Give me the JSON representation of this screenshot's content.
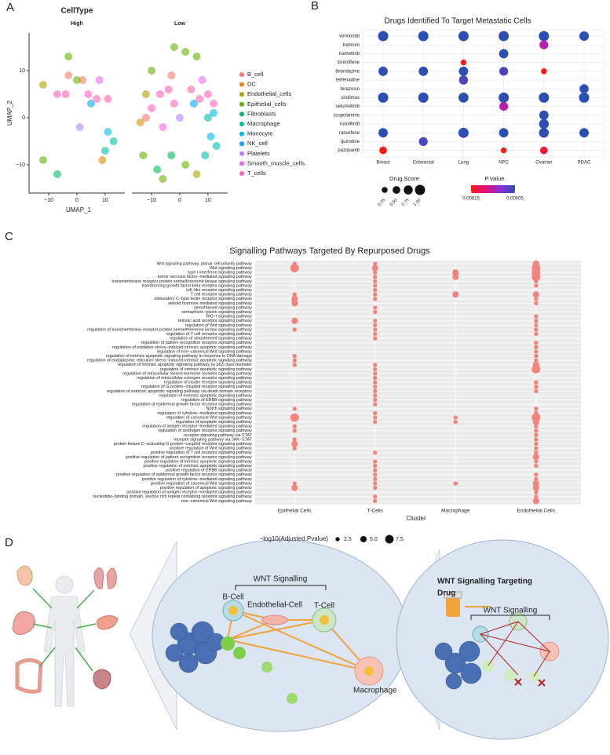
{
  "panel_labels": [
    "A",
    "B",
    "C",
    "D"
  ],
  "chart_data": [
    {
      "type": "scatter",
      "title": "CellType",
      "xlabel": "UMAP_1",
      "ylabel": "UMAP_2",
      "xlim": [
        -17,
        17
      ],
      "ylim": [
        -16,
        18
      ],
      "xticks": [
        {
          "value": -10,
          "label": "−10"
        },
        0,
        10
      ],
      "yticks": [
        {
          "value": -10,
          "label": "−10"
        },
        0,
        10
      ],
      "series": [
        {
          "name": "B_cell",
          "color": "#F8766D"
        },
        {
          "name": "DC",
          "color": "#DB8E00"
        },
        {
          "name": "Endothelial_cells",
          "color": "#AEA200"
        },
        {
          "name": "Epithelial_cells",
          "color": "#64B200"
        },
        {
          "name": "Fibroblasts",
          "color": "#00BD5C"
        },
        {
          "name": "Macrophage",
          "color": "#00C1A7"
        },
        {
          "name": "Monocyte",
          "color": "#00BADE"
        },
        {
          "name": "NK_cell",
          "color": "#00A6FF"
        },
        {
          "name": "Platelets",
          "color": "#B385FF"
        },
        {
          "name": "Smooth_muscle_cells",
          "color": "#EF67EB"
        },
        {
          "name": "T_cells",
          "color": "#FF63B6"
        }
      ],
      "facets": [
        {
          "label": "High",
          "points": [
            {
              "x": [
                -3,
                2
              ],
              "y": [
                9,
                8
              ]
            },
            {
              "x": [
                9
              ],
              "y": [
                -9
              ]
            },
            {
              "x": [
                -12
              ],
              "y": [
                7
              ]
            },
            {
              "x": [
                -3,
                -12,
                0
              ],
              "y": [
                13,
                -9,
                8
              ]
            },
            {
              "x": [
                -7
              ],
              "y": [
                -12
              ]
            },
            {
              "x": [
                10,
                13
              ],
              "y": [
                -7,
                -5
              ]
            },
            {
              "x": [
                11
              ],
              "y": [
                -3
              ]
            },
            {
              "x": [
                5
              ],
              "y": [
                3
              ]
            },
            {
              "x": [
                1
              ],
              "y": [
                -2
              ]
            },
            {
              "x": [
                8
              ],
              "y": [
                8
              ]
            },
            {
              "x": [
                -7,
                -4,
                4,
                7,
                11
              ],
              "y": [
                5,
                5,
                5,
                4,
                4
              ]
            }
          ]
        },
        {
          "label": "Low",
          "points": [
            {
              "x": [
                -3,
                -12
              ],
              "y": [
                9,
                0
              ]
            },
            {
              "x": [
                -14
              ],
              "y": [
                -1
              ]
            },
            {
              "x": [
                -12,
                6
              ],
              "y": [
                5,
                -12
              ]
            },
            {
              "x": [
                -2,
                2,
                6,
                -13,
                -6,
                2,
                -10
              ],
              "y": [
                15,
                14,
                13,
                -8,
                -13,
                -10,
                10
              ]
            },
            {
              "x": [
                -8,
                -3
              ],
              "y": [
                -11,
                -8
              ]
            },
            {
              "x": [
                10,
                13,
                9
              ],
              "y": [
                0,
                -6,
                -8
              ]
            },
            {
              "x": [
                11,
                12
              ],
              "y": [
                -4,
                1
              ]
            },
            {
              "x": [
                5
              ],
              "y": [
                3
              ]
            },
            {
              "x": [
                0
              ],
              "y": [
                0
              ]
            },
            {
              "x": [
                8,
                -6
              ],
              "y": [
                8,
                -2
              ]
            },
            {
              "x": [
                -7,
                -4,
                -2,
                4,
                7,
                10,
                12,
                -10
              ],
              "y": [
                5,
                6,
                3,
                6,
                4,
                5,
                3,
                2
              ]
            }
          ]
        }
      ]
    },
    {
      "type": "dotplot",
      "title": "Drugs Identified To Target Metastatic Cells",
      "categories": [
        "vorinostat",
        "tretinoin",
        "trametinib",
        "toremifene",
        "thioridazine",
        "terfenadine",
        "terazosin",
        "sirolimus",
        "selumetinib",
        "scopolamine",
        "ruxolitinib",
        "raloxifene",
        "quinidine",
        "pazopanib"
      ],
      "size_title": "Drug.Score",
      "size_ticks": [
        0.25,
        {
          "value": 0.5,
          "label": "0.50"
        },
        0.75,
        {
          "value": 1,
          "label": "1.00"
        }
      ],
      "color_title": "P.Value",
      "colorlim": [
        0.00015,
        5e-05
      ],
      "colorticks": [
        0.00015,
        5e-05
      ],
      "colors": [
        "#ff1a1a",
        "#e0107a",
        "#8a2fd8",
        "#2c4fb3"
      ],
      "series": [
        {
          "name": "Breast",
          "values": [
            1,
            null,
            null,
            null,
            0.8,
            null,
            null,
            1,
            null,
            null,
            null,
            0.8,
            null,
            0.5
          ],
          "pvalues": [
            5e-05,
            null,
            null,
            null,
            5e-05,
            null,
            null,
            5e-05,
            null,
            null,
            null,
            5e-05,
            null,
            0.00015
          ]
        },
        {
          "name": "Colorectal",
          "values": [
            1,
            null,
            null,
            null,
            0.8,
            null,
            null,
            1,
            null,
            null,
            null,
            null,
            0.7,
            null
          ],
          "pvalues": [
            5e-05,
            null,
            null,
            null,
            5e-05,
            null,
            null,
            5e-05,
            null,
            null,
            null,
            null,
            6e-05,
            null
          ]
        },
        {
          "name": "Lung",
          "values": [
            1,
            null,
            null,
            0.25,
            0.8,
            0.75,
            null,
            0.95,
            null,
            null,
            null,
            1,
            null,
            null
          ],
          "pvalues": [
            5e-05,
            null,
            null,
            0.00015,
            5e-05,
            6e-05,
            null,
            5e-05,
            null,
            null,
            null,
            5e-05,
            null,
            null
          ]
        },
        {
          "name": "NPC",
          "values": [
            1,
            null,
            0.8,
            null,
            0.7,
            null,
            null,
            1,
            0.7,
            null,
            null,
            0.8,
            null,
            0.25
          ],
          "pvalues": [
            5e-05,
            null,
            5e-05,
            null,
            6e-05,
            null,
            null,
            5e-05,
            0.0001,
            null,
            null,
            5e-05,
            null,
            0.00015
          ]
        },
        {
          "name": "Ovarian",
          "values": [
            1,
            0.7,
            null,
            null,
            0.25,
            null,
            null,
            1,
            null,
            0.8,
            0.9,
            0.9,
            null,
            0.5
          ],
          "pvalues": [
            5e-05,
            0.0001,
            null,
            null,
            0.00015,
            null,
            null,
            5e-05,
            null,
            5e-05,
            5e-05,
            5e-05,
            null,
            0.00014
          ]
        },
        {
          "name": "PDAC",
          "values": [
            0.85,
            null,
            null,
            null,
            null,
            null,
            0.75,
            1,
            null,
            null,
            null,
            0.8,
            null,
            null
          ],
          "pvalues": [
            5e-05,
            null,
            null,
            null,
            null,
            null,
            5e-05,
            5e-05,
            null,
            null,
            null,
            5e-05,
            null,
            null
          ]
        }
      ]
    },
    {
      "type": "dotplot",
      "title": "Signalling Pathways Targeted By Repurposed Drugs",
      "xlabel": "Cluster",
      "color": "#f4837d",
      "size_title": "−log10(Adjusted.Pvalue)",
      "size_ticks": [
        2.5,
        {
          "value": 5,
          "label": "5.0"
        },
        7.5
      ],
      "categories": [
        "Wnt signaling pathway, planar cell polarity pathway",
        "Wnt signaling pathway",
        "type I interferon signaling pathway",
        "tumor necrosis factor−mediated signaling pathway",
        "transmembrane receptor protein serine/threonine kinase signaling pathway",
        "transforming growth factor beta receptor signaling pathway",
        "toll−like receptor signaling pathway",
        "T cell receptor signaling pathway",
        "stimulatory C−type lectin receptor signaling pathway",
        "steroid hormone mediated signaling pathway",
        "smoothened signaling pathway",
        "semaphorin−plexin signaling pathway",
        "RIG−I signaling pathway",
        "retinoic acid receptor signaling pathway",
        "regulation of Wnt signaling pathway",
        "regulation of transmembrane receptor protein serine/threonine kinase signaling pathway",
        "regulation of T cell receptor signaling pathway",
        "regulation of smoothened signaling pathway",
        "regulation of pattern recognition receptor signaling pathway",
        "regulation of oxidative stress−induced intrinsic apoptotic signaling pathway",
        "regulation of non−canonical Wnt signaling pathway",
        "regulation of intrinsic apoptotic signaling pathway in response to DNA damage",
        "regulation of endoplasmic reticulum stress−induced intrinsic apoptotic signaling pathway",
        "regulation of intrinsic apoptotic signaling pathway by p53 class mediator",
        "regulation of intrinsic apoptotic signaling pathway",
        "regulation of intracellular steroid hormone receptor signaling pathway",
        "regulation of intracellular estrogen receptor signaling pathway",
        "regulation of insulin receptor signaling pathway",
        "regulation of G protein−coupled receptor signaling pathway",
        "regulation of extrinsic apoptotic signaling pathway via death domain receptors",
        "regulation of extrinsic apoptotic signaling pathway",
        "regulation of ERBB signaling pathway",
        "regulation of epidermal growth factor receptor signaling pathway",
        "Notch signaling pathway",
        "regulation of cytokine−mediated signaling pathway",
        "regulation of canonical Wnt signaling pathway",
        "regulation of apoptotic signaling pathway",
        "regulation of antigen receptor−mediated signaling pathway",
        "regulation of androgen receptor signaling pathway",
        "receptor signaling pathway via STAT",
        "receptor signaling pathway via JAK−STAT",
        "protein kinase C−activating G protein−coupled receptor signaling pathway",
        "positive regulation of Wnt signaling pathway",
        "positive regulation of T cell receptor signaling pathway",
        "positive regulation of pattern recognition receptor signaling pathway",
        "positive regulation of intrinsic apoptotic signaling pathway",
        "positive regulation of extrinsic apoptotic signaling pathway",
        "positive regulation of ERBB signaling pathway",
        "positive regulation of epidermal growth factor receptor signaling pathway",
        "positive regulation of cytokine−mediated signaling pathway",
        "positive regulation of canonical Wnt signaling pathway",
        "positive regulation of apoptotic signaling pathway",
        "positive regulation of antigen receptor−mediated signaling pathway",
        "nucleotide−binding domain, leucine rich repeat containing receptor signaling pathway",
        "non−canonical Wnt signaling pathway"
      ],
      "series": [
        {
          "name": "Epithelial Cells",
          "values": [
            2.5,
            7.5,
            null,
            null,
            null,
            null,
            null,
            2.5,
            5,
            5,
            null,
            null,
            null,
            5,
            null,
            2.5,
            null,
            null,
            null,
            null,
            null,
            2.5,
            2.5,
            2.5,
            null,
            null,
            null,
            null,
            null,
            null,
            null,
            null,
            null,
            2.5,
            null,
            7.5,
            null,
            2.5,
            2.5,
            null,
            2.5,
            5,
            2.5,
            null,
            null,
            null,
            null,
            null,
            null,
            null,
            2.5,
            5,
            null,
            null,
            null
          ]
        },
        {
          "name": "T-Cells",
          "values": [
            2.5,
            5,
            2.5,
            2.5,
            2.5,
            2.5,
            2.5,
            2.5,
            2.5,
            null,
            2.5,
            2.5,
            null,
            2.5,
            2.5,
            2.5,
            2.5,
            2.5,
            null,
            null,
            null,
            null,
            null,
            2.5,
            2.5,
            2.5,
            2.5,
            2.5,
            2.5,
            2.5,
            2.5,
            2.5,
            2.5,
            null,
            2.5,
            2.5,
            2.5,
            null,
            null,
            null,
            null,
            null,
            null,
            2.5,
            null,
            2.5,
            2.5,
            2.5,
            2.5,
            2.5,
            2.5,
            2.5,
            null,
            2.5,
            2.5
          ]
        },
        {
          "name": "Macrophage",
          "values": [
            null,
            null,
            5,
            5,
            null,
            null,
            null,
            5,
            null,
            null,
            null,
            null,
            null,
            null,
            null,
            null,
            null,
            null,
            null,
            null,
            null,
            null,
            null,
            null,
            null,
            null,
            null,
            null,
            null,
            null,
            null,
            null,
            null,
            null,
            null,
            2.5,
            2.5,
            null,
            null,
            null,
            null,
            null,
            null,
            null,
            null,
            null,
            null,
            null,
            null,
            null,
            2.5,
            null,
            null,
            null,
            null
          ]
        },
        {
          "name": "Endothelial Cells",
          "values": [
            5,
            7.5,
            7.5,
            7.5,
            2.5,
            2.5,
            null,
            5,
            2.5,
            2.5,
            null,
            null,
            2.5,
            2.5,
            2.5,
            2.5,
            2.5,
            null,
            2.5,
            2.5,
            2.5,
            2.5,
            2.5,
            5,
            7.5,
            null,
            null,
            2.5,
            2.5,
            2.5,
            null,
            null,
            null,
            2.5,
            2.5,
            7.5,
            5,
            2.5,
            2.5,
            2.5,
            2.5,
            2.5,
            2.5,
            2.5,
            5,
            2.5,
            2.5,
            null,
            2.5,
            2.5,
            5,
            5,
            2.5,
            2.5,
            5
          ]
        }
      ]
    }
  ],
  "diagram": {
    "left_title": "WNT Signalling",
    "cells": [
      "B-Cell",
      "Endothelial-Cell",
      "T-Cell",
      "Macrophage"
    ],
    "right_title": [
      "WNT Signalling Targeting",
      "Drug"
    ],
    "right_subtitle": "WNT Signalling"
  }
}
